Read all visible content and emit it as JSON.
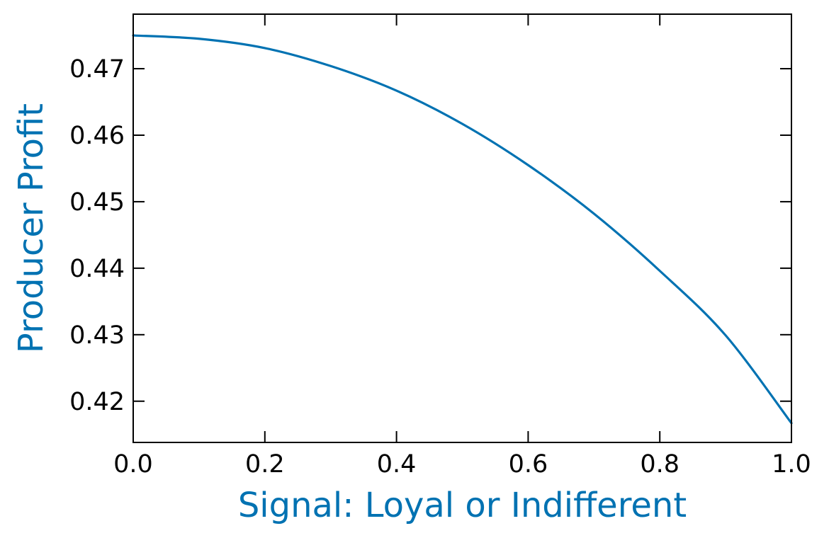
{
  "chart_data": {
    "type": "line",
    "title": "",
    "xlabel": "Signal: Loyal or Indifferent",
    "ylabel": "Producer Profit",
    "xlim": [
      0.0,
      1.0
    ],
    "ylim": [
      0.4138,
      0.4782
    ],
    "xticks": [
      "0.0",
      "0.2",
      "0.4",
      "0.6",
      "0.8",
      "1.0"
    ],
    "yticks": [
      "0.42",
      "0.43",
      "0.44",
      "0.45",
      "0.46",
      "0.47"
    ],
    "grid": false,
    "legend": "none",
    "series": [
      {
        "x": [
          0.0,
          0.1,
          0.2,
          0.3,
          0.4,
          0.5,
          0.6,
          0.7,
          0.8,
          0.9,
          1.0
        ],
        "y": [
          0.475,
          0.4745,
          0.4731,
          0.4704,
          0.4667,
          0.4617,
          0.4555,
          0.4482,
          0.4396,
          0.4299,
          0.4167
        ],
        "color": "#0072B2"
      }
    ]
  },
  "colors": {
    "accent": "#0072B2",
    "axis": "#000000"
  }
}
